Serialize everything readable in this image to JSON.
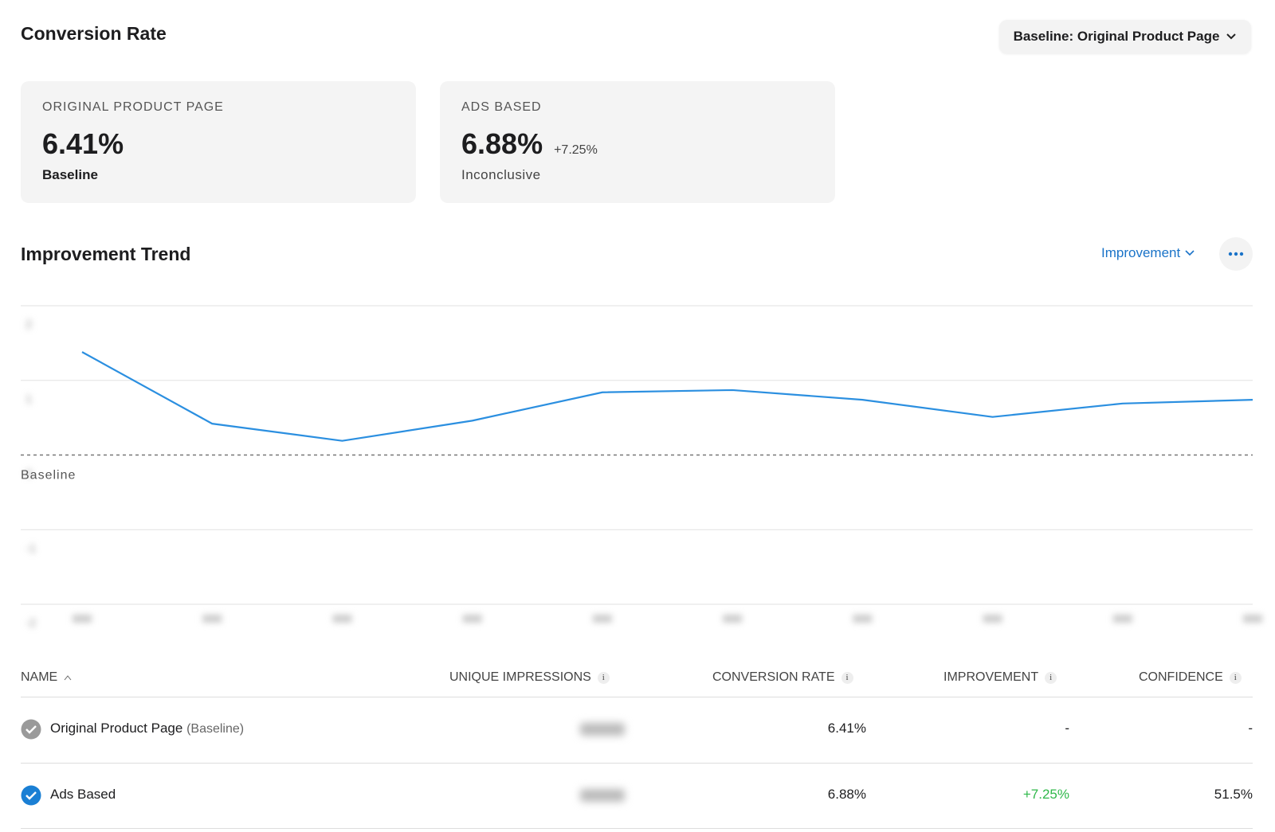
{
  "header": {
    "title": "Conversion Rate",
    "baseline_selector": "Baseline: Original Product Page"
  },
  "cards": [
    {
      "label": "ORIGINAL PRODUCT PAGE",
      "value": "6.41%",
      "status": "Baseline"
    },
    {
      "label": "ADS BASED",
      "value": "6.88%",
      "change": "+7.25%",
      "status": "Inconclusive"
    }
  ],
  "trend": {
    "title": "Improvement Trend",
    "metric_selector": "Improvement"
  },
  "chart_data": {
    "type": "line",
    "categories": [
      null,
      null,
      null,
      null,
      null,
      null,
      null,
      null,
      null,
      null
    ],
    "values": [
      1.38,
      0.42,
      0.19,
      0.46,
      0.84,
      0.87,
      0.74,
      0.51,
      0.69,
      0.74
    ],
    "color": "#2b8fe0",
    "ylim": [
      -2,
      2
    ],
    "yticks": [
      -2,
      -1,
      0,
      1,
      2
    ],
    "grid": true,
    "reference_line": {
      "value": 0,
      "label": "Baseline"
    }
  },
  "table": {
    "columns": [
      "NAME",
      "UNIQUE IMPRESSIONS",
      "CONVERSION RATE",
      "IMPROVEMENT",
      "CONFIDENCE"
    ],
    "rows": [
      {
        "name": "Original Product Page",
        "tag": "(Baseline)",
        "conversion_rate": "6.41%",
        "improvement": "-",
        "confidence": "-"
      },
      {
        "name": "Ads Based",
        "conversion_rate": "6.88%",
        "improvement": "+7.25%",
        "confidence": "51.5%"
      }
    ]
  }
}
